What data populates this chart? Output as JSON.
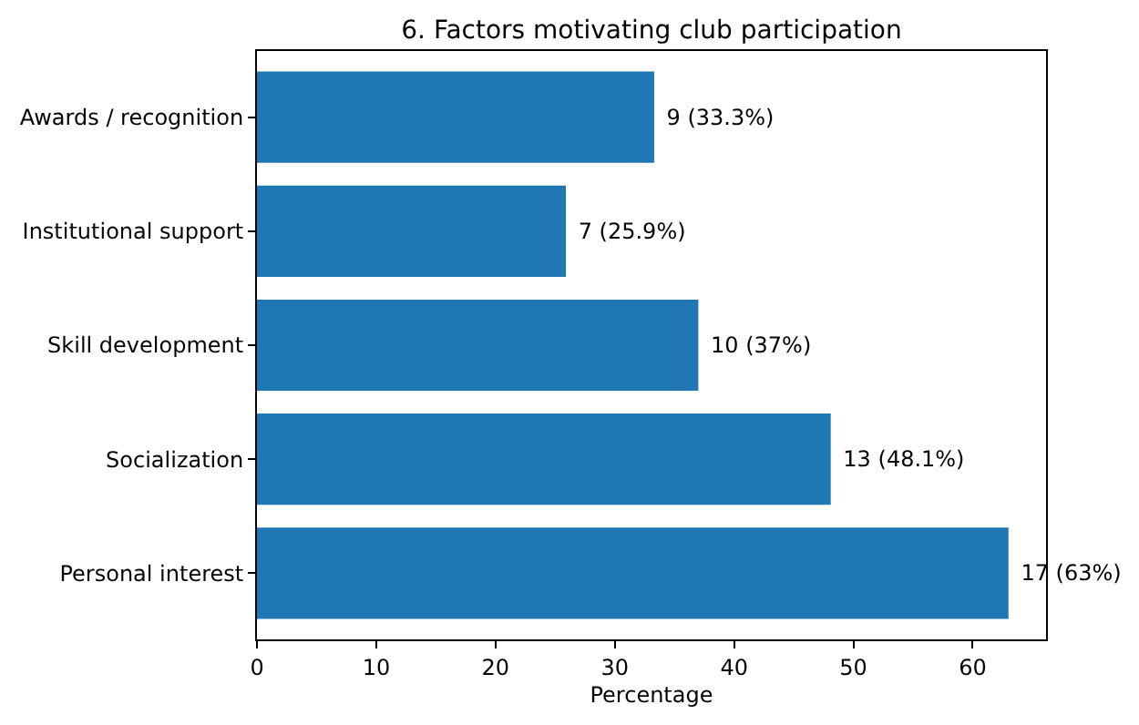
{
  "chart_data": {
    "type": "bar",
    "orientation": "horizontal",
    "title": "6. Factors motivating club participation",
    "xlabel": "Percentage",
    "categories": [
      "Awards / recognition",
      "Institutional support",
      "Skill development",
      "Socialization",
      "Personal interest"
    ],
    "values": [
      33.3,
      25.9,
      37,
      48.1,
      63
    ],
    "color": "#1f77b4",
    "value_labels": [
      "9 (33.3%)",
      "7 (25.9%)",
      "10 (37%)",
      "13 (48.1%)",
      "17 (63%)"
    ],
    "xlim": [
      0,
      66.15
    ],
    "xticks": [
      0,
      10,
      20,
      30,
      40,
      50,
      60
    ],
    "grid": false
  }
}
